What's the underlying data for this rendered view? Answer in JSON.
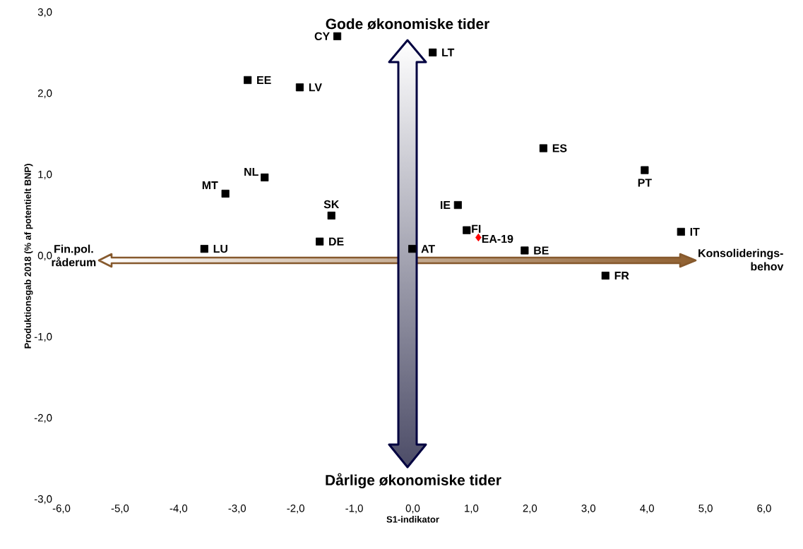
{
  "chart_data": {
    "type": "scatter",
    "xlabel": "S1-indikator",
    "ylabel": "Produktionsgab 2018 (% af potentielt BNP)",
    "xlim": [
      -6,
      6
    ],
    "ylim": [
      -3,
      3
    ],
    "xticks": [
      {
        "value": -6,
        "label": "-6,0"
      },
      {
        "value": -5,
        "label": "-5,0"
      },
      {
        "value": -4,
        "label": "-4,0"
      },
      {
        "value": -3,
        "label": "-3,0"
      },
      {
        "value": -2,
        "label": "-2,0"
      },
      {
        "value": -1,
        "label": "-1,0"
      },
      {
        "value": 0,
        "label": "0,0"
      },
      {
        "value": 1,
        "label": "1,0"
      },
      {
        "value": 2,
        "label": "2,0"
      },
      {
        "value": 3,
        "label": "3,0"
      },
      {
        "value": 4,
        "label": "4,0"
      },
      {
        "value": 5,
        "label": "5,0"
      },
      {
        "value": 6,
        "label": "6,0"
      }
    ],
    "yticks": [
      {
        "value": -3,
        "label": "-3,0"
      },
      {
        "value": -2,
        "label": "-2,0"
      },
      {
        "value": -1,
        "label": "-1,0"
      },
      {
        "value": 0,
        "label": "0,0"
      },
      {
        "value": 1,
        "label": "1,0"
      },
      {
        "value": 2,
        "label": "2,0"
      },
      {
        "value": 3,
        "label": "3,0"
      }
    ],
    "grid": false,
    "marker": "square",
    "annotations": [
      "Gode økonomiske tider",
      "Dårlige økonomiske tider",
      "Fin.pol. råderum",
      "Konsoliderings-behov"
    ],
    "series": [
      {
        "name": "CY",
        "color": "#000000",
        "x": [
          -1.29
        ],
        "values": [
          2.71
        ]
      },
      {
        "name": "LT",
        "color": "#000000",
        "x": [
          0.34
        ],
        "values": [
          2.51
        ]
      },
      {
        "name": "EE",
        "color": "#000000",
        "x": [
          -2.82
        ],
        "values": [
          2.17
        ]
      },
      {
        "name": "LV",
        "color": "#000000",
        "x": [
          -1.93
        ],
        "values": [
          2.08
        ]
      },
      {
        "name": "ES",
        "color": "#000000",
        "x": [
          2.23
        ],
        "values": [
          1.33
        ]
      },
      {
        "name": "PT",
        "color": "#000000",
        "x": [
          3.96
        ],
        "values": [
          1.06
        ]
      },
      {
        "name": "NL",
        "color": "#000000",
        "x": [
          -2.53
        ],
        "values": [
          0.97
        ]
      },
      {
        "name": "MT",
        "color": "#000000",
        "x": [
          -3.2
        ],
        "values": [
          0.77
        ]
      },
      {
        "name": "IE",
        "color": "#000000",
        "x": [
          0.77
        ],
        "values": [
          0.63
        ]
      },
      {
        "name": "SK",
        "color": "#000000",
        "x": [
          -1.39
        ],
        "values": [
          0.5
        ]
      },
      {
        "name": "FI",
        "color": "#000000",
        "x": [
          0.92
        ],
        "values": [
          0.32
        ]
      },
      {
        "name": "IT",
        "color": "#000000",
        "x": [
          4.58
        ],
        "values": [
          0.3
        ]
      },
      {
        "name": "EA-19",
        "color": "#ff0000",
        "marker": "diamond",
        "x": [
          1.12
        ],
        "values": [
          0.23
        ]
      },
      {
        "name": "DE",
        "color": "#000000",
        "x": [
          -1.59
        ],
        "values": [
          0.18
        ]
      },
      {
        "name": "LU",
        "color": "#000000",
        "x": [
          -3.56
        ],
        "values": [
          0.09
        ]
      },
      {
        "name": "AT",
        "color": "#000000",
        "x": [
          -0.01
        ],
        "values": [
          0.09
        ]
      },
      {
        "name": "BE",
        "color": "#000000",
        "x": [
          1.91
        ],
        "values": [
          0.07
        ]
      },
      {
        "name": "FR",
        "color": "#000000",
        "x": [
          3.29
        ],
        "values": [
          -0.24
        ]
      }
    ]
  }
}
